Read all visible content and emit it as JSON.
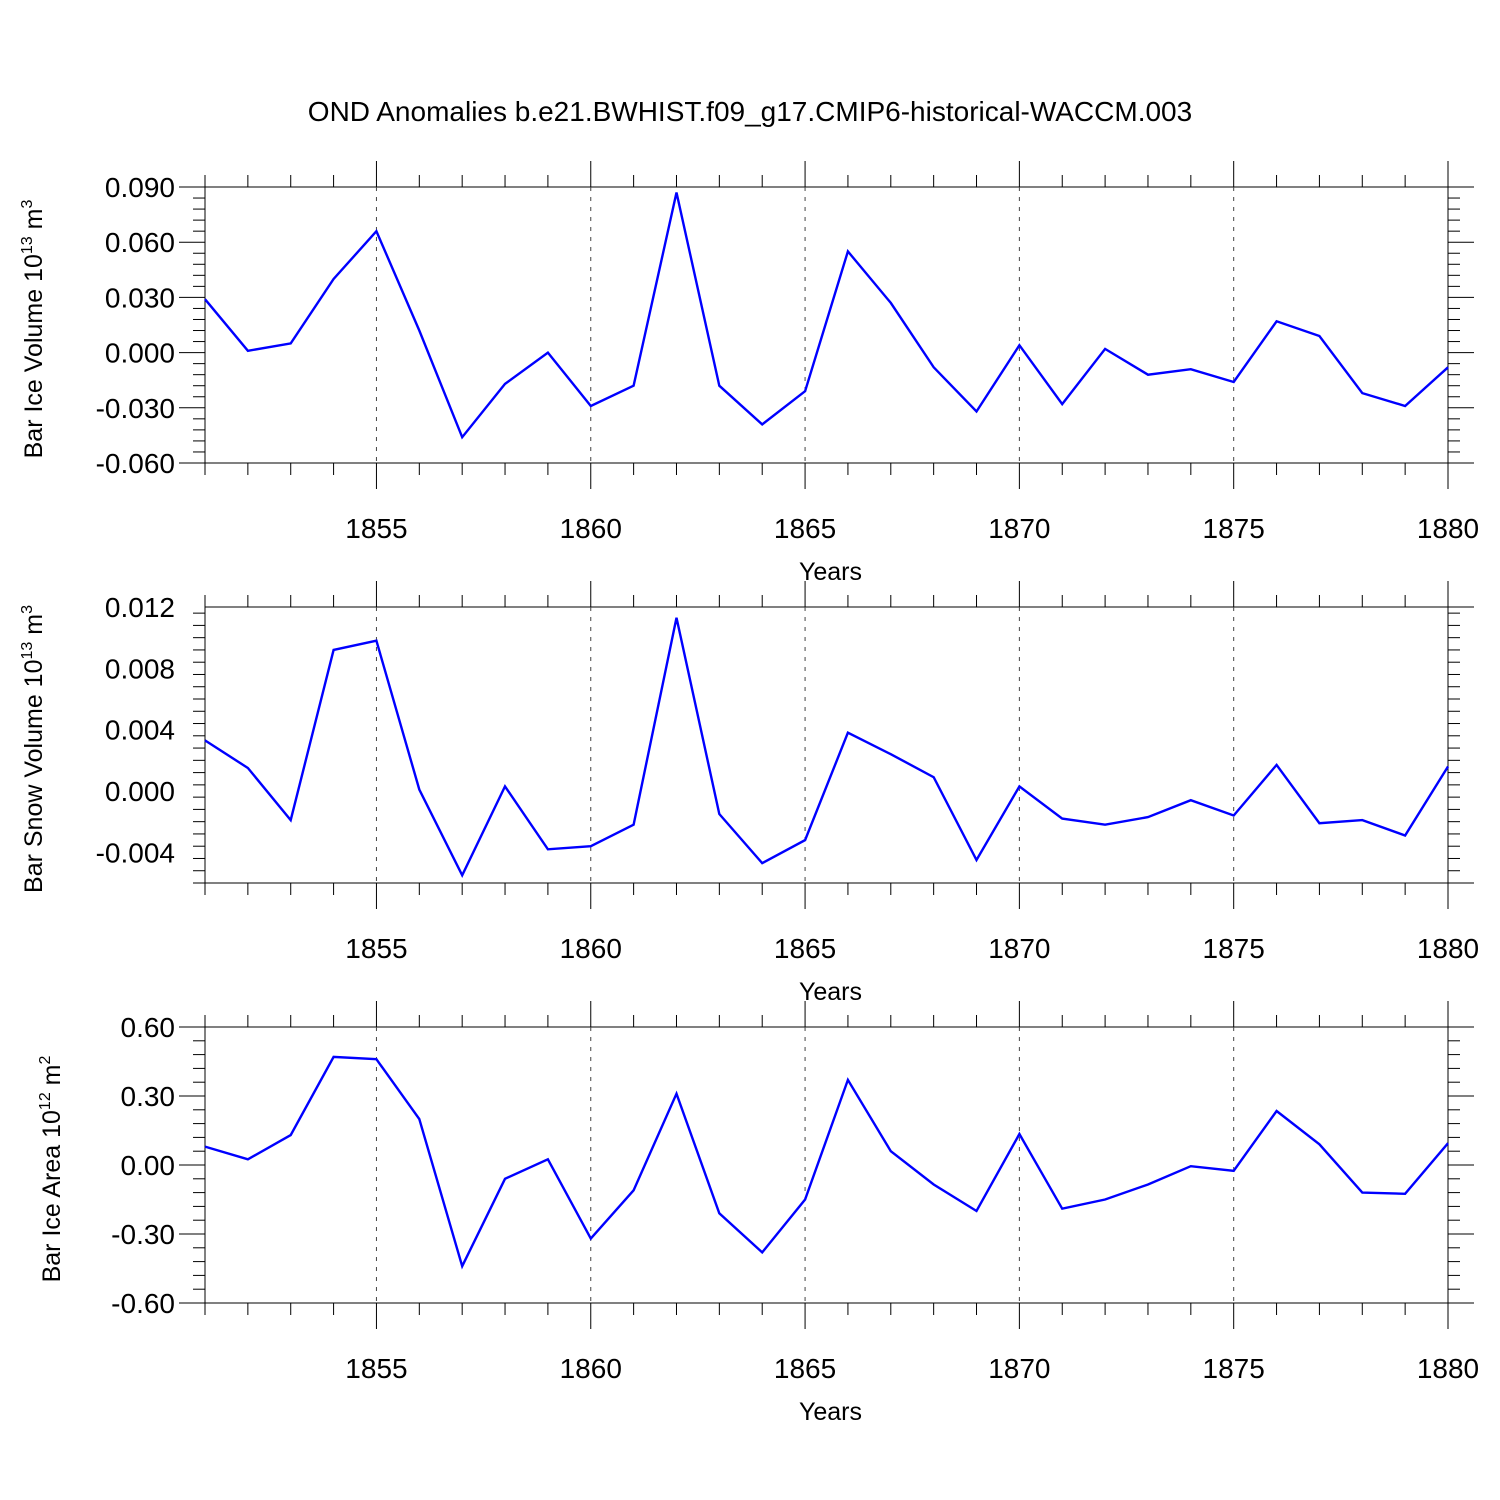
{
  "figure": {
    "title": "OND Anomalies b.e21.BWHIST.f09_g17.CMIP6-historical-WACCM.003",
    "line_color": "#0000ff"
  },
  "chart_data": [
    {
      "type": "line",
      "ylabel": "Bar Ice Volume 10",
      "ylabel_exp": "13",
      "ylabel_unit": "m",
      "ylabel_unit_exp": "3",
      "xlabel": "Years",
      "xlim": [
        1851,
        1880
      ],
      "ylim": [
        -0.06,
        0.09
      ],
      "yticks": [
        -0.06,
        -0.03,
        0.0,
        0.03,
        0.06,
        0.09
      ],
      "ytick_labels": [
        "-0.060",
        "-0.030",
        "0.000",
        "0.030",
        "0.060",
        "0.090"
      ],
      "xticks": [
        1855,
        1860,
        1865,
        1870,
        1875,
        1880
      ],
      "xtick_labels": [
        "1855",
        "1860",
        "1865",
        "1870",
        "1875",
        "1880"
      ],
      "x": [
        1851,
        1852,
        1853,
        1854,
        1855,
        1856,
        1857,
        1858,
        1859,
        1860,
        1861,
        1862,
        1863,
        1864,
        1865,
        1866,
        1867,
        1868,
        1869,
        1870,
        1871,
        1872,
        1873,
        1874,
        1875,
        1876,
        1877,
        1878,
        1879,
        1880
      ],
      "values": [
        0.029,
        0.001,
        0.005,
        0.04,
        0.066,
        0.012,
        -0.046,
        -0.017,
        0.0,
        -0.029,
        -0.018,
        0.087,
        -0.018,
        -0.039,
        -0.021,
        0.055,
        0.027,
        -0.008,
        -0.032,
        0.004,
        -0.028,
        0.002,
        -0.012,
        -0.009,
        -0.016,
        0.017,
        0.009,
        -0.022,
        -0.029,
        -0.008
      ]
    },
    {
      "type": "line",
      "ylabel": "Bar Snow Volume 10",
      "ylabel_exp": "13",
      "ylabel_unit": "m",
      "ylabel_unit_exp": "3",
      "xlabel": "Years",
      "xlim": [
        1851,
        1880
      ],
      "ylim": [
        -0.006,
        0.012
      ],
      "yticks": [
        -0.004,
        0.0,
        0.004,
        0.008,
        0.012
      ],
      "ytick_labels": [
        "-0.004",
        "0.000",
        "0.004",
        "0.008",
        "0.012"
      ],
      "xticks": [
        1855,
        1860,
        1865,
        1870,
        1875,
        1880
      ],
      "xtick_labels": [
        "1855",
        "1860",
        "1865",
        "1870",
        "1875",
        "1880"
      ],
      "x": [
        1851,
        1852,
        1853,
        1854,
        1855,
        1856,
        1857,
        1858,
        1859,
        1860,
        1861,
        1862,
        1863,
        1864,
        1865,
        1866,
        1867,
        1868,
        1869,
        1870,
        1871,
        1872,
        1873,
        1874,
        1875,
        1876,
        1877,
        1878,
        1879,
        1880
      ],
      "values": [
        0.0033,
        0.0015,
        -0.0019,
        0.0092,
        0.0098,
        0.0001,
        -0.0055,
        0.0003,
        -0.0038,
        -0.0036,
        -0.0022,
        0.0113,
        -0.0015,
        -0.0047,
        -0.0032,
        0.0038,
        0.0024,
        0.0009,
        -0.0045,
        0.0003,
        -0.0018,
        -0.0022,
        -0.0017,
        -0.0006,
        -0.0016,
        0.0017,
        -0.0021,
        -0.0019,
        -0.0029,
        0.0016
      ]
    },
    {
      "type": "line",
      "ylabel": "Bar Ice Area 10",
      "ylabel_exp": "12",
      "ylabel_unit": "m",
      "ylabel_unit_exp": "2",
      "xlabel": "Years",
      "xlim": [
        1851,
        1880
      ],
      "ylim": [
        -0.6,
        0.6
      ],
      "yticks": [
        -0.6,
        -0.3,
        0.0,
        0.3,
        0.6
      ],
      "ytick_labels": [
        "-0.60",
        "-0.30",
        "0.00",
        "0.30",
        "0.60"
      ],
      "xticks": [
        1855,
        1860,
        1865,
        1870,
        1875,
        1880
      ],
      "xtick_labels": [
        "1855",
        "1860",
        "1865",
        "1870",
        "1875",
        "1880"
      ],
      "x": [
        1851,
        1852,
        1853,
        1854,
        1855,
        1856,
        1857,
        1858,
        1859,
        1860,
        1861,
        1862,
        1863,
        1864,
        1865,
        1866,
        1867,
        1868,
        1869,
        1870,
        1871,
        1872,
        1873,
        1874,
        1875,
        1876,
        1877,
        1878,
        1879,
        1880
      ],
      "values": [
        0.08,
        0.025,
        0.13,
        0.47,
        0.46,
        0.2,
        -0.44,
        -0.06,
        0.025,
        -0.32,
        -0.11,
        0.31,
        -0.21,
        -0.38,
        -0.15,
        0.37,
        0.06,
        -0.085,
        -0.2,
        0.135,
        -0.19,
        -0.15,
        -0.085,
        -0.005,
        -0.025,
        0.235,
        0.09,
        -0.12,
        -0.125,
        0.095
      ]
    }
  ]
}
